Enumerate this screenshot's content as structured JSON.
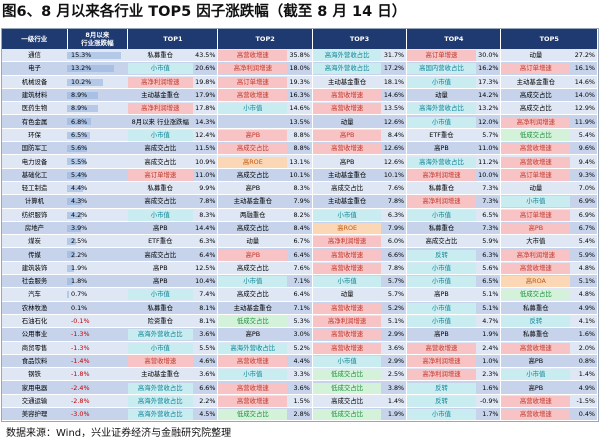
{
  "title": "图6、8 月以来各行业 TOP5 因子涨跌幅（截至 8 月 14 日）",
  "source": "数据来源：Wind，兴业证券经济与金融研究院整理",
  "headers": [
    "一级行业",
    "8月以来\n行业涨跌幅",
    "TOP1",
    "",
    "TOP2",
    "",
    "TOP3",
    "",
    "TOP4",
    "",
    "TOP5",
    ""
  ],
  "colors": {
    "header_bg": "#1f3a70",
    "row_light": "#dfe7f4",
    "row_dark": "#c6d3ea",
    "pink": "#f7c3c5",
    "cyan": "#c8ecf0",
    "green": "#d4f2da",
    "orange": "#fbd7b5"
  },
  "rows": [
    {
      "industry": "通信",
      "pct": "15.3%",
      "pct_value": 15.3,
      "t1": "私募重仓",
      "c1": "",
      "v1": "43.5%",
      "t2": "高营收增速",
      "c2": "pk",
      "v2": "35.8%",
      "t3": "高海外营收占比",
      "c3": "cy",
      "v3": "31.7%",
      "t4": "高订单增速",
      "c4": "pk",
      "v4": "30.0%",
      "t5": "动量",
      "c5": "",
      "v5": "27.2%"
    },
    {
      "industry": "电子",
      "pct": "13.2%",
      "pct_value": 13.2,
      "t1": "小市值",
      "c1": "cy",
      "v1": "20.6%",
      "t2": "高净利润增速",
      "c2": "pk",
      "v2": "18.0%",
      "t3": "高海外营收占比",
      "c3": "cy",
      "v3": "17.2%",
      "t4": "高国内营收占比",
      "c4": "cy",
      "v4": "16.2%",
      "t5": "高订单增速",
      "c5": "pk",
      "v5": "16.1%"
    },
    {
      "industry": "机械设备",
      "pct": "10.2%",
      "pct_value": 10.2,
      "t1": "高净利润增速",
      "c1": "pk",
      "v1": "19.8%",
      "t2": "高订单增速",
      "c2": "pk",
      "v2": "19.3%",
      "t3": "主动基金重仓",
      "c3": "",
      "v3": "18.1%",
      "t4": "小市值",
      "c4": "cy",
      "v4": "17.3%",
      "t5": "主动基金重仓",
      "c5": "",
      "v5": "14.6%"
    },
    {
      "industry": "建筑材料",
      "pct": "8.9%",
      "pct_value": 8.9,
      "t1": "主动基金重仓",
      "c1": "",
      "v1": "17.9%",
      "t2": "高营收增速",
      "c2": "pk",
      "v2": "16.3%",
      "t3": "高营收增速",
      "c3": "pk",
      "v3": "14.6%",
      "t4": "动量",
      "c4": "",
      "v4": "14.2%",
      "t5": "高成交占比",
      "c5": "",
      "v5": "14.0%"
    },
    {
      "industry": "医药生物",
      "pct": "8.9%",
      "pct_value": 8.9,
      "t1": "高净利润增速",
      "c1": "pk",
      "v1": "17.8%",
      "t2": "小市值",
      "c2": "cy",
      "v2": "14.6%",
      "t3": "高营收增速",
      "c3": "pk",
      "v3": "13.5%",
      "t4": "高海外营收占比",
      "c4": "cy",
      "v4": "13.2%",
      "t5": "高成交占比",
      "c5": "",
      "v5": "12.9%"
    },
    {
      "industry": "有色金属",
      "pct": "6.8%",
      "pct_value": 6.8,
      "t1": "8月以来\n行业涨跌幅",
      "c1": "",
      "v1": "14.3%",
      "t2": "",
      "c2": "",
      "v2": "13.5%",
      "t3": "动量",
      "c3": "",
      "v3": "12.6%",
      "t4": "小市值",
      "c4": "cy",
      "v4": "12.0%",
      "t5": "高净利润增速",
      "c5": "pk",
      "v5": "11.9%"
    },
    {
      "industry": "环保",
      "pct": "6.5%",
      "pct_value": 6.5,
      "t1": "小市值",
      "c1": "cy",
      "v1": "12.4%",
      "t2": "高PB",
      "c2": "pk",
      "v2": "8.8%",
      "t3": "高PB",
      "c3": "pk",
      "v3": "8.4%",
      "t4": "ETF重仓",
      "c4": "",
      "v4": "5.7%",
      "t5": "低成交占比",
      "c5": "gn",
      "v5": "5.4%"
    },
    {
      "industry": "国防军工",
      "pct": "5.6%",
      "pct_value": 5.6,
      "t1": "高成交占比",
      "c1": "",
      "v1": "11.5%",
      "t2": "高成交占比",
      "c2": "pk",
      "v2": "8.8%",
      "t3": "高营收增速",
      "c3": "pk",
      "v3": "12.6%",
      "t4": "高PB",
      "c4": "",
      "v4": "11.0%",
      "t5": "高营收增速",
      "c5": "pk",
      "v5": "9.6%"
    },
    {
      "industry": "电力设备",
      "pct": "5.5%",
      "pct_value": 5.5,
      "t1": "高成交占比",
      "c1": "",
      "v1": "10.9%",
      "t2": "高ROE",
      "c2": "or",
      "v2": "13.1%",
      "t3": "高PB",
      "c3": "",
      "v3": "12.6%",
      "t4": "高海外营收占比",
      "c4": "cy",
      "v4": "11.2%",
      "t5": "高营收增速",
      "c5": "pk",
      "v5": "9.4%"
    },
    {
      "industry": "基础化工",
      "pct": "5.4%",
      "pct_value": 5.4,
      "t1": "高订单增速",
      "c1": "pk",
      "v1": "11.0%",
      "t2": "高成交占比",
      "c2": "",
      "v2": "10.1%",
      "t3": "主动基金重仓",
      "c3": "",
      "v3": "10.1%",
      "t4": "高净利润增速",
      "c4": "pk",
      "v4": "10.0%",
      "t5": "高订单增速",
      "c5": "pk",
      "v5": "9.3%"
    },
    {
      "industry": "轻工制造",
      "pct": "4.4%",
      "pct_value": 4.4,
      "t1": "私募重仓",
      "c1": "",
      "v1": "9.9%",
      "t2": "高PB",
      "c2": "",
      "v2": "8.3%",
      "t3": "高成交占比",
      "c3": "",
      "v3": "7.6%",
      "t4": "私募重仓",
      "c4": "",
      "v4": "7.3%",
      "t5": "动量",
      "c5": "",
      "v5": "7.0%"
    },
    {
      "industry": "计算机",
      "pct": "4.3%",
      "pct_value": 4.3,
      "t1": "高成交占比",
      "c1": "",
      "v1": "7.8%",
      "t2": "主动基金重仓",
      "c2": "",
      "v2": "7.9%",
      "t3": "主动基金重仓",
      "c3": "",
      "v3": "7.8%",
      "t4": "高净利润增速",
      "c4": "pk",
      "v4": "7.3%",
      "t5": "小市值",
      "c5": "cy",
      "v5": "6.9%"
    },
    {
      "industry": "纺织服饰",
      "pct": "4.2%",
      "pct_value": 4.2,
      "t1": "小市值",
      "c1": "cy",
      "v1": "8.3%",
      "t2": "两融重仓",
      "c2": "",
      "v2": "8.2%",
      "t3": "小市值",
      "c3": "cy",
      "v3": "6.3%",
      "t4": "小市值",
      "c4": "cy",
      "v4": "6.5%",
      "t5": "高订单增速",
      "c5": "pk",
      "v5": "6.9%"
    },
    {
      "industry": "房地产",
      "pct": "3.9%",
      "pct_value": 3.9,
      "t1": "高PB",
      "c1": "",
      "v1": "14.4%",
      "t2": "高成交占比",
      "c2": "",
      "v2": "8.4%",
      "t3": "高ROE",
      "c3": "or",
      "v3": "7.9%",
      "t4": "私募重仓",
      "c4": "",
      "v4": "7.3%",
      "t5": "高PB",
      "c5": "pk",
      "v5": "6.7%"
    },
    {
      "industry": "煤炭",
      "pct": "2.5%",
      "pct_value": 2.5,
      "t1": "ETF重仓",
      "c1": "",
      "v1": "6.3%",
      "t2": "动量",
      "c2": "",
      "v2": "6.7%",
      "t3": "高净利润增速",
      "c3": "pk",
      "v3": "6.0%",
      "t4": "高成交占比",
      "c4": "",
      "v4": "5.9%",
      "t5": "大市值",
      "c5": "",
      "v5": "5.4%"
    },
    {
      "industry": "传媒",
      "pct": "2.2%",
      "pct_value": 2.2,
      "t1": "高成交占比",
      "c1": "",
      "v1": "6.4%",
      "t2": "高PB",
      "c2": "pk",
      "v2": "6.4%",
      "t3": "高营收增速",
      "c3": "pk",
      "v3": "6.6%",
      "t4": "反转",
      "c4": "cy",
      "v4": "6.3%",
      "t5": "高净利润增速",
      "c5": "pk",
      "v5": "5.9%"
    },
    {
      "industry": "建筑装饰",
      "pct": "1.9%",
      "pct_value": 1.9,
      "t1": "高PB",
      "c1": "",
      "v1": "12.5%",
      "t2": "高成交占比",
      "c2": "",
      "v2": "7.6%",
      "t3": "高营收增速",
      "c3": "pk",
      "v3": "7.8%",
      "t4": "小市值",
      "c4": "cy",
      "v4": "5.6%",
      "t5": "高营收增速",
      "c5": "pk",
      "v5": "4.8%"
    },
    {
      "industry": "社会服务",
      "pct": "1.8%",
      "pct_value": 1.8,
      "t1": "高PB",
      "c1": "",
      "v1": "10.4%",
      "t2": "小市值",
      "c2": "cy",
      "v2": "7.1%",
      "t3": "小市值",
      "c3": "cy",
      "v3": "5.7%",
      "t4": "小市值",
      "c4": "cy",
      "v4": "6.5%",
      "t5": "高ROA",
      "c5": "or",
      "v5": "5.1%"
    },
    {
      "industry": "汽车",
      "pct": "0.7%",
      "pct_value": 0.7,
      "t1": "小市值",
      "c1": "cy",
      "v1": "7.4%",
      "t2": "高成交占比",
      "c2": "",
      "v2": "6.4%",
      "t3": "动量",
      "c3": "",
      "v3": "5.7%",
      "t4": "高PB",
      "c4": "",
      "v4": "5.1%",
      "t5": "低成交占比",
      "c5": "gn",
      "v5": "4.8%"
    },
    {
      "industry": "农林牧渔",
      "pct": "0.1%",
      "pct_value": 0.1,
      "t1": "私募重仓",
      "c1": "",
      "v1": "8.1%",
      "t2": "主动基金重仓",
      "c2": "",
      "v2": "7.1%",
      "t3": "高营收增速",
      "c3": "pk",
      "v3": "5.2%",
      "t4": "小市值",
      "c4": "cy",
      "v4": "5.1%",
      "t5": "私募重仓",
      "c5": "",
      "v5": "4.9%"
    },
    {
      "industry": "石油石化",
      "pct": "-0.1%",
      "pct_value": -0.1,
      "t1": "险资重仓",
      "c1": "",
      "v1": "8.1%",
      "t2": "低成交占比",
      "c2": "gn",
      "v2": "5.3%",
      "t3": "高净利润增速",
      "c3": "pk",
      "v3": "5.1%",
      "t4": "小市值",
      "c4": "cy",
      "v4": "4.7%",
      "t5": "反转",
      "c5": "cy",
      "v5": "4.1%"
    },
    {
      "industry": "公用事业",
      "pct": "-1.3%",
      "pct_value": -1.3,
      "t1": "高海外营收占比",
      "c1": "cy",
      "v1": "3.6%",
      "t2": "高PB",
      "c2": "",
      "v2": "3.0%",
      "t3": "高营收增速",
      "c3": "pk",
      "v3": "2.9%",
      "t4": "高PB",
      "c4": "",
      "v4": "1.9%",
      "t5": "私募重仓",
      "c5": "",
      "v5": "1.6%"
    },
    {
      "industry": "商贸零售",
      "pct": "-1.3%",
      "pct_value": -1.3,
      "t1": "小市值",
      "c1": "cy",
      "v1": "5.5%",
      "t2": "高海外营收占比",
      "c2": "cy",
      "v2": "5.2%",
      "t3": "高营收增速",
      "c3": "pk",
      "v3": "3.6%",
      "t4": "高营收增速",
      "c4": "pk",
      "v4": "2.4%",
      "t5": "高营收增速",
      "c5": "pk",
      "v5": "2.0%"
    },
    {
      "industry": "食品饮料",
      "pct": "-1.4%",
      "pct_value": -1.4,
      "t1": "高营收增速",
      "c1": "pk",
      "v1": "4.6%",
      "t2": "高营收增速",
      "c2": "pk",
      "v2": "4.4%",
      "t3": "小市值",
      "c3": "cy",
      "v3": "2.9%",
      "t4": "高净利润增速",
      "c4": "pk",
      "v4": "1.0%",
      "t5": "高PB",
      "c5": "",
      "v5": "0.8%"
    },
    {
      "industry": "钢铁",
      "pct": "-1.8%",
      "pct_value": -1.8,
      "t1": "主动基金重仓",
      "c1": "",
      "v1": "3.6%",
      "t2": "小市值",
      "c2": "cy",
      "v2": "3.3%",
      "t3": "低成交占比",
      "c3": "gn",
      "v3": "2.5%",
      "t4": "高净利润增速",
      "c4": "pk",
      "v4": "2.3%",
      "t5": "小市值",
      "c5": "cy",
      "v5": "1.4%"
    },
    {
      "industry": "家用电器",
      "pct": "-2.4%",
      "pct_value": -2.4,
      "t1": "高海外营收占比",
      "c1": "cy",
      "v1": "6.6%",
      "t2": "高营收增速",
      "c2": "pk",
      "v2": "3.6%",
      "t3": "低成交占比",
      "c3": "gn",
      "v3": "3.8%",
      "t4": "反转",
      "c4": "cy",
      "v4": "1.6%",
      "t5": "高PB",
      "c5": "",
      "v5": "4.9%"
    },
    {
      "industry": "交通运输",
      "pct": "-2.8%",
      "pct_value": -2.8,
      "t1": "高海外营收占比",
      "c1": "cy",
      "v1": "2.2%",
      "t2": "高营收增速",
      "c2": "pk",
      "v2": "1.5%",
      "t3": "高成交占比",
      "c3": "",
      "v3": "1.4%",
      "t4": "反转",
      "c4": "cy",
      "v4": "-0.9%",
      "t5": "高营收增速",
      "c5": "pk",
      "v5": "-1.5%"
    },
    {
      "industry": "美容护理",
      "pct": "-3.0%",
      "pct_value": -3.0,
      "t1": "高海外营收占比",
      "c1": "cy",
      "v1": "4.5%",
      "t2": "低成交占比",
      "c2": "gn",
      "v2": "2.8%",
      "t3": "低成交占比",
      "c3": "gn",
      "v3": "1.9%",
      "t4": "小市值",
      "c4": "cy",
      "v4": "1.7%",
      "t5": "高营收增速",
      "c5": "pk",
      "v5": "0.4%"
    },
    {
      "industry": "非银金融",
      "pct": "-3.2%",
      "pct_value": -3.2,
      "t1": "高营收增速",
      "c1": "pk",
      "v1": "8.1%",
      "t2": "高营收增速",
      "c2": "pk",
      "v2": "-0.3%",
      "t3": "高ROIC",
      "c3": "or",
      "v3": "-1.0%",
      "t4": "反转",
      "c4": "cy",
      "v4": "-1.7%",
      "t5": "高营收增速",
      "c5": "pk",
      "v5": "-1.8%"
    },
    {
      "industry": "银行",
      "pct": "-3.7%",
      "pct_value": -3.7,
      "t1": "高ROA",
      "c1": "or",
      "v1": "-0.9%",
      "t2": "高营收增速",
      "c2": "pk",
      "v2": "-1.3%",
      "t3": "高ROIC",
      "c3": "or",
      "v3": "-2.2%",
      "t4": "高ROE",
      "c4": "or",
      "v4": "-2.4%",
      "t5": "高营收增速",
      "c5": "pk",
      "v5": "-2.6%"
    }
  ]
}
